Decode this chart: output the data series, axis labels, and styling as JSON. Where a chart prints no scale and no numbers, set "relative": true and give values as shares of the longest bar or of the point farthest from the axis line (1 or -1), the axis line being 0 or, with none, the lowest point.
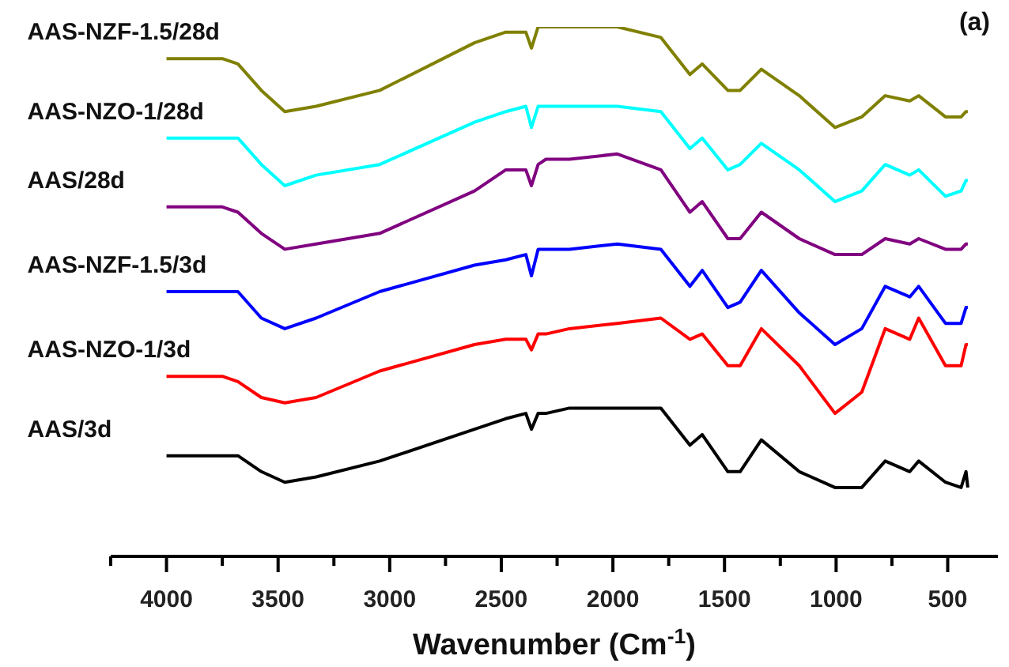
{
  "chart_data": {
    "type": "line",
    "relative": true,
    "xlabel": "Wavenumber (Cm$^{-1}$)",
    "annotations": [
      "(a)"
    ],
    "marker": "none",
    "line_style": "solid",
    "xlim": [
      4250,
      275
    ],
    "xticks": [
      {
        "value": 4250,
        "label": null
      },
      4000,
      {
        "value": 3750,
        "label": null
      },
      3500,
      {
        "value": 3250,
        "label": null
      },
      3000,
      {
        "value": 2750,
        "label": null
      },
      2500,
      {
        "value": 2250,
        "label": null
      },
      2000,
      {
        "value": 1750,
        "label": null
      },
      1500,
      {
        "value": 1250,
        "label": null
      },
      1000,
      {
        "value": 750,
        "label": null
      },
      500
    ],
    "x": [
      4000,
      3750,
      3680,
      3575,
      3470,
      3330,
      3045,
      2620,
      2480,
      2390,
      2365,
      2335,
      2300,
      2195,
      1980,
      1785,
      1655,
      1600,
      1485,
      1430,
      1335,
      1165,
      1005,
      885,
      780,
      670,
      630,
      510,
      440,
      418,
      410
    ],
    "series": [
      {
        "name": "AAS-NZF-1.5/28d",
        "color": "#808000",
        "values": [
          0.94,
          0.94,
          0.93,
          0.88,
          0.84,
          0.85,
          0.88,
          0.97,
          0.99,
          0.99,
          0.96,
          1.0,
          1.0,
          1.0,
          1.0,
          0.98,
          0.91,
          0.93,
          0.88,
          0.88,
          0.92,
          0.87,
          0.81,
          0.83,
          0.87,
          0.86,
          0.87,
          0.83,
          0.83,
          0.84,
          0.84
        ]
      },
      {
        "name": "AAS-NZO-1/28d",
        "color": "#00ffff",
        "values": [
          0.79,
          0.79,
          0.79,
          0.74,
          0.7,
          0.72,
          0.74,
          0.82,
          0.84,
          0.85,
          0.81,
          0.85,
          0.85,
          0.85,
          0.85,
          0.84,
          0.77,
          0.79,
          0.73,
          0.74,
          0.78,
          0.73,
          0.67,
          0.69,
          0.74,
          0.72,
          0.73,
          0.68,
          0.69,
          0.71,
          0.71
        ]
      },
      {
        "name": "AAS/28d",
        "color": "#800080",
        "values": [
          0.66,
          0.66,
          0.65,
          0.61,
          0.58,
          0.59,
          0.61,
          0.69,
          0.73,
          0.73,
          0.7,
          0.74,
          0.75,
          0.75,
          0.76,
          0.73,
          0.65,
          0.67,
          0.6,
          0.6,
          0.65,
          0.6,
          0.57,
          0.57,
          0.6,
          0.59,
          0.6,
          0.58,
          0.58,
          0.59,
          0.59
        ]
      },
      {
        "name": "AAS-NZF-1.5/3d",
        "color": "#0000ff",
        "values": [
          0.5,
          0.5,
          0.5,
          0.45,
          0.43,
          0.45,
          0.5,
          0.55,
          0.56,
          0.57,
          0.53,
          0.58,
          0.58,
          0.58,
          0.59,
          0.58,
          0.51,
          0.54,
          0.47,
          0.48,
          0.54,
          0.46,
          0.4,
          0.43,
          0.51,
          0.49,
          0.51,
          0.44,
          0.44,
          0.47,
          0.47
        ]
      },
      {
        "name": "AAS-NZO-1/3d",
        "color": "#ff0000",
        "values": [
          0.34,
          0.34,
          0.33,
          0.3,
          0.29,
          0.3,
          0.35,
          0.4,
          0.41,
          0.41,
          0.39,
          0.42,
          0.42,
          0.43,
          0.44,
          0.45,
          0.41,
          0.42,
          0.36,
          0.36,
          0.43,
          0.36,
          0.27,
          0.31,
          0.43,
          0.41,
          0.45,
          0.36,
          0.36,
          0.4,
          0.4
        ]
      },
      {
        "name": "AAS/3d",
        "color": "#000000",
        "values": [
          0.19,
          0.19,
          0.19,
          0.16,
          0.14,
          0.15,
          0.18,
          0.24,
          0.26,
          0.27,
          0.24,
          0.27,
          0.27,
          0.28,
          0.28,
          0.28,
          0.21,
          0.23,
          0.16,
          0.16,
          0.22,
          0.16,
          0.13,
          0.13,
          0.18,
          0.16,
          0.18,
          0.14,
          0.13,
          0.16,
          0.13
        ]
      }
    ]
  }
}
